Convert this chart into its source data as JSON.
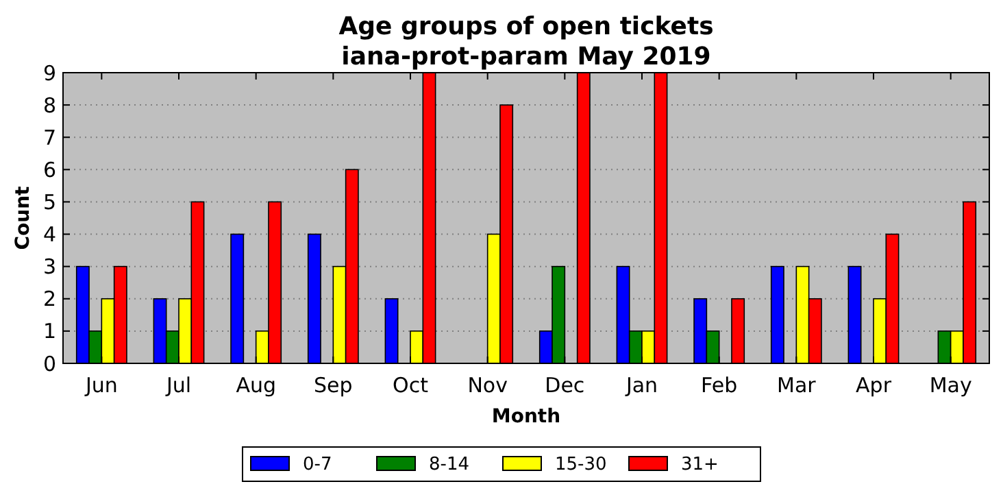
{
  "chart_data": {
    "type": "bar",
    "title": "Age groups of open tickets",
    "subtitle": "iana-prot-param May 2019",
    "xlabel": "Month",
    "ylabel": "Count",
    "categories": [
      "Jun",
      "Jul",
      "Aug",
      "Sep",
      "Oct",
      "Nov",
      "Dec",
      "Jan",
      "Feb",
      "Mar",
      "Apr",
      "May"
    ],
    "series": [
      {
        "name": "0-7",
        "color": "#0000ff",
        "values": [
          3,
          2,
          4,
          4,
          2,
          0,
          1,
          3,
          2,
          3,
          3,
          0
        ]
      },
      {
        "name": "8-14",
        "color": "#008000",
        "values": [
          1,
          1,
          0,
          0,
          0,
          0,
          3,
          1,
          1,
          0,
          0,
          1
        ]
      },
      {
        "name": "15-30",
        "color": "#ffff00",
        "values": [
          2,
          2,
          1,
          3,
          1,
          4,
          0,
          1,
          0,
          3,
          2,
          1
        ]
      },
      {
        "name": "31+",
        "color": "#ff0000",
        "values": [
          3,
          5,
          5,
          6,
          9,
          8,
          9,
          9,
          2,
          2,
          4,
          5
        ]
      }
    ],
    "ylim": [
      0,
      9
    ],
    "yticks": [
      0,
      1,
      2,
      3,
      4,
      5,
      6,
      7,
      8,
      9
    ],
    "grid": "y",
    "legend": "bottom"
  }
}
